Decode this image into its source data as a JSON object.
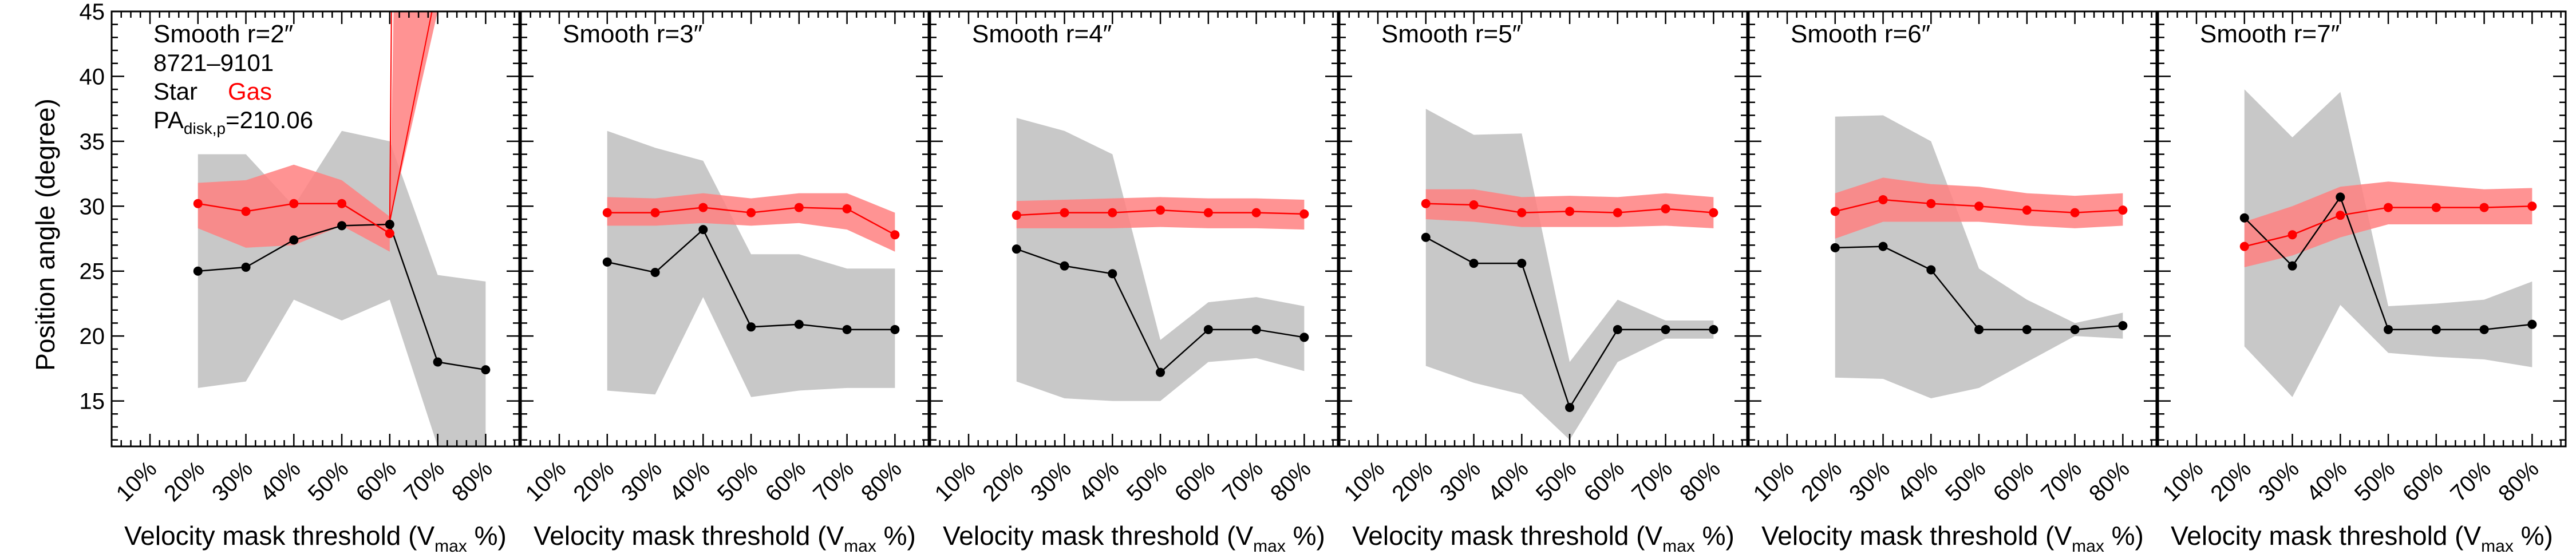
{
  "chart_data": {
    "type": "line",
    "ylabel": "Position angle (degree)",
    "ylim": [
      11.5,
      45
    ],
    "yticks": [
      15,
      20,
      25,
      30,
      35,
      40,
      45
    ],
    "xticks": [
      10,
      20,
      30,
      40,
      50,
      60,
      70,
      80
    ],
    "xtick_labels": [
      "10%",
      "20%",
      "30%",
      "40%",
      "50%",
      "60%",
      "70%",
      "80%"
    ],
    "xlim": [
      2,
      87
    ],
    "xlabel_main": "Velocity mask threshold (V",
    "xlabel_sub": "max",
    "xlabel_tail": " %)",
    "annotation": {
      "id": "8721–9101",
      "star_label": "Star",
      "gas_label": "Gas",
      "pa_prefix": "PA",
      "pa_sub": "disk,p",
      "pa_value": "=210.06"
    },
    "colors": {
      "star": "#000000",
      "gas": "#ff0000",
      "star_band": "#c8c8c8",
      "gas_band": "#ff8080"
    },
    "panels": [
      {
        "title": "Smooth r=2″",
        "x": [
          20,
          30,
          40,
          50,
          60,
          70,
          80
        ],
        "star": [
          25.0,
          25.3,
          27.4,
          28.5,
          28.6,
          18.0,
          17.4
        ],
        "star_lo": [
          16.0,
          16.5,
          22.8,
          21.2,
          22.8,
          11.5,
          11.5
        ],
        "star_hi": [
          34.0,
          34.0,
          30.0,
          35.8,
          35.0,
          24.7,
          24.2
        ],
        "gas_x": [
          20,
          30,
          40,
          50,
          60
        ],
        "gas": [
          30.2,
          29.6,
          30.2,
          30.2,
          27.9
        ],
        "gas_lo": [
          28.3,
          26.8,
          27.0,
          28.5,
          26.5
        ],
        "gas_hi": [
          31.8,
          32.0,
          33.2,
          32.0,
          29.2
        ],
        "gas_spike": {
          "x": 60,
          "lo": 28.8,
          "hi": 45
        }
      },
      {
        "title": "Smooth r=3″",
        "x": [
          20,
          30,
          40,
          50,
          60,
          70,
          80
        ],
        "star": [
          25.7,
          24.9,
          28.2,
          20.7,
          20.9,
          20.5,
          20.5
        ],
        "star_lo": [
          15.8,
          15.5,
          23.0,
          15.3,
          15.8,
          16.0,
          16.0
        ],
        "star_hi": [
          35.8,
          34.5,
          33.5,
          26.3,
          26.3,
          25.2,
          25.2
        ],
        "gas_x": [
          20,
          30,
          40,
          50,
          60,
          70,
          80
        ],
        "gas": [
          29.5,
          29.5,
          29.9,
          29.5,
          29.9,
          29.8,
          27.8
        ],
        "gas_lo": [
          28.5,
          28.5,
          28.7,
          28.5,
          28.7,
          28.2,
          26.5
        ],
        "gas_hi": [
          30.7,
          30.6,
          31.0,
          30.6,
          31.0,
          31.0,
          29.5
        ]
      },
      {
        "title": "Smooth r=4″",
        "x": [
          20,
          30,
          40,
          50,
          60,
          70,
          80
        ],
        "star": [
          26.7,
          25.4,
          24.8,
          17.2,
          20.5,
          20.5,
          19.9
        ],
        "star_lo": [
          16.5,
          15.2,
          15.0,
          15.0,
          18.0,
          18.3,
          17.3
        ],
        "star_hi": [
          36.8,
          35.8,
          34.0,
          19.7,
          22.6,
          23.0,
          22.3
        ],
        "gas_x": [
          20,
          30,
          40,
          50,
          60,
          70,
          80
        ],
        "gas": [
          29.3,
          29.5,
          29.5,
          29.7,
          29.5,
          29.5,
          29.4
        ],
        "gas_lo": [
          28.3,
          28.3,
          28.3,
          28.4,
          28.3,
          28.3,
          28.2
        ],
        "gas_hi": [
          30.4,
          30.5,
          30.6,
          30.7,
          30.6,
          30.6,
          30.5
        ]
      },
      {
        "title": "Smooth r=5″",
        "x": [
          20,
          30,
          40,
          50,
          60,
          70,
          80
        ],
        "star": [
          27.6,
          25.6,
          25.6,
          14.5,
          20.5,
          20.5,
          20.5
        ],
        "star_lo": [
          17.7,
          16.4,
          15.5,
          12.0,
          18.0,
          19.8,
          19.8
        ],
        "star_hi": [
          37.5,
          35.5,
          35.6,
          18.0,
          22.8,
          21.2,
          21.2
        ],
        "gas_x": [
          20,
          30,
          40,
          50,
          60,
          70,
          80
        ],
        "gas": [
          30.2,
          30.1,
          29.5,
          29.6,
          29.5,
          29.8,
          29.5
        ],
        "gas_lo": [
          29.0,
          28.8,
          28.4,
          28.4,
          28.4,
          28.5,
          28.3
        ],
        "gas_hi": [
          31.3,
          31.3,
          30.7,
          30.8,
          30.7,
          31.0,
          30.7
        ]
      },
      {
        "title": "Smooth r=6″",
        "x": [
          20,
          30,
          40,
          50,
          60,
          70,
          80
        ],
        "star": [
          26.8,
          26.9,
          25.1,
          20.5,
          20.5,
          20.5,
          20.8
        ],
        "star_lo": [
          16.8,
          16.7,
          15.2,
          16.0,
          18.0,
          20.0,
          19.8
        ],
        "star_hi": [
          36.9,
          37.0,
          35.0,
          25.2,
          22.8,
          21.0,
          21.8
        ],
        "gas_x": [
          20,
          30,
          40,
          50,
          60,
          70,
          80
        ],
        "gas": [
          29.6,
          30.5,
          30.2,
          30.0,
          29.7,
          29.5,
          29.7
        ],
        "gas_lo": [
          27.5,
          28.8,
          28.8,
          28.8,
          28.5,
          28.3,
          28.5
        ],
        "gas_hi": [
          31.0,
          32.2,
          31.7,
          31.5,
          31.0,
          30.8,
          31.0
        ]
      },
      {
        "title": "Smooth r=7″",
        "x": [
          20,
          30,
          40,
          50,
          60,
          70,
          80
        ],
        "star": [
          29.1,
          25.4,
          30.7,
          20.5,
          20.5,
          20.5,
          20.9
        ],
        "star_lo": [
          19.2,
          15.3,
          22.4,
          18.7,
          18.4,
          18.2,
          17.6
        ],
        "star_hi": [
          39.0,
          35.3,
          38.8,
          22.3,
          22.5,
          22.8,
          24.2
        ],
        "gas_x": [
          20,
          30,
          40,
          50,
          60,
          70,
          80
        ],
        "gas": [
          26.9,
          27.8,
          29.3,
          29.9,
          29.9,
          29.9,
          30.0
        ],
        "gas_lo": [
          25.3,
          26.2,
          27.6,
          28.6,
          28.6,
          28.6,
          28.6
        ],
        "gas_hi": [
          28.8,
          30.0,
          31.5,
          31.9,
          31.6,
          31.3,
          31.4
        ]
      }
    ]
  }
}
